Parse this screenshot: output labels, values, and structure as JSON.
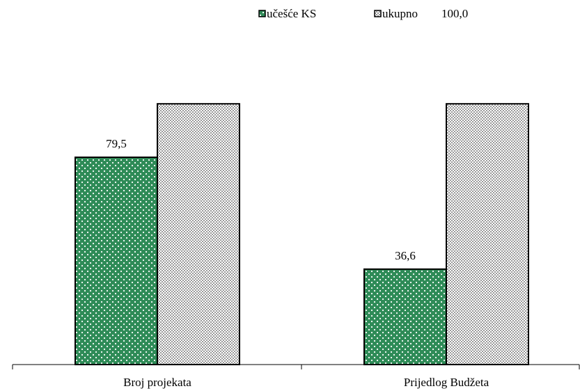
{
  "chart_data": {
    "type": "bar",
    "categories": [
      "Broj projekata",
      "Prijedlog Budžeta"
    ],
    "series": [
      {
        "name": "učešće KS",
        "values": [
          79.5,
          36.6
        ],
        "labels": [
          "79,5",
          "36,6"
        ],
        "color": "#2e8b57",
        "pattern": "white-dots"
      },
      {
        "name": "ukupno",
        "values": [
          100.0,
          100.0
        ],
        "color": "#c8c8c8",
        "pattern": "grey-checker"
      }
    ],
    "extra_label": "100,0",
    "ylim": [
      0,
      119
    ],
    "grid": false,
    "legend": "top-center",
    "title": "",
    "xlabel": "",
    "ylabel": ""
  }
}
